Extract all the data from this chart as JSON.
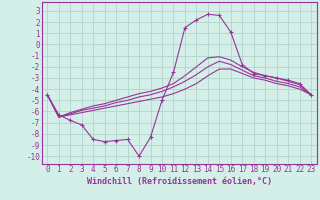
{
  "background_color": "#d4eee8",
  "grid_color": "#b0d4cc",
  "line_color": "#993399",
  "marker": "+",
  "xlabel": "Windchill (Refroidissement éolien,°C)",
  "xlabel_fontsize": 6,
  "ytick_fontsize": 5.5,
  "xtick_fontsize": 5.5,
  "xlim": [
    -0.5,
    23.5
  ],
  "ylim": [
    -10.7,
    3.8
  ],
  "yticks": [
    3,
    2,
    1,
    0,
    -1,
    -2,
    -3,
    -4,
    -5,
    -6,
    -7,
    -8,
    -9,
    -10
  ],
  "xticks": [
    0,
    1,
    2,
    3,
    4,
    5,
    6,
    7,
    8,
    9,
    10,
    11,
    12,
    13,
    14,
    15,
    16,
    17,
    18,
    19,
    20,
    21,
    22,
    23
  ],
  "series": [
    {
      "x": [
        0,
        1,
        2,
        3,
        4,
        5,
        6,
        7,
        8,
        9,
        10,
        11,
        12,
        13,
        14,
        15,
        16,
        17,
        18,
        19,
        20,
        21,
        22,
        23
      ],
      "y": [
        -4.5,
        -6.3,
        -6.8,
        -7.2,
        -8.5,
        -8.7,
        -8.6,
        -8.5,
        -10.0,
        -8.3,
        -5.0,
        -2.5,
        1.5,
        2.2,
        2.7,
        2.6,
        1.1,
        -1.8,
        -2.6,
        -2.8,
        -3.0,
        -3.2,
        -3.5,
        -4.5
      ],
      "has_markers": true
    },
    {
      "x": [
        0,
        1,
        2,
        3,
        4,
        5,
        6,
        7,
        8,
        9,
        10,
        11,
        12,
        13,
        14,
        15,
        16,
        17,
        18,
        19,
        20,
        21,
        22,
        23
      ],
      "y": [
        -4.5,
        -6.5,
        -6.3,
        -6.1,
        -5.9,
        -5.7,
        -5.5,
        -5.3,
        -5.1,
        -4.9,
        -4.7,
        -4.4,
        -4.0,
        -3.5,
        -2.8,
        -2.2,
        -2.2,
        -2.6,
        -3.0,
        -3.2,
        -3.5,
        -3.7,
        -4.0,
        -4.5
      ],
      "has_markers": false
    },
    {
      "x": [
        0,
        1,
        2,
        3,
        4,
        5,
        6,
        7,
        8,
        9,
        10,
        11,
        12,
        13,
        14,
        15,
        16,
        17,
        18,
        19,
        20,
        21,
        22,
        23
      ],
      "y": [
        -4.5,
        -6.5,
        -6.2,
        -5.9,
        -5.7,
        -5.5,
        -5.2,
        -5.0,
        -4.7,
        -4.5,
        -4.2,
        -3.8,
        -3.3,
        -2.7,
        -2.0,
        -1.5,
        -1.8,
        -2.3,
        -2.8,
        -3.0,
        -3.3,
        -3.5,
        -3.8,
        -4.5
      ],
      "has_markers": false
    },
    {
      "x": [
        0,
        1,
        2,
        3,
        4,
        5,
        6,
        7,
        8,
        9,
        10,
        11,
        12,
        13,
        14,
        15,
        16,
        17,
        18,
        19,
        20,
        21,
        22,
        23
      ],
      "y": [
        -4.5,
        -6.5,
        -6.1,
        -5.8,
        -5.5,
        -5.3,
        -5.0,
        -4.7,
        -4.4,
        -4.2,
        -3.9,
        -3.5,
        -2.8,
        -2.0,
        -1.2,
        -1.1,
        -1.4,
        -2.0,
        -2.5,
        -2.8,
        -3.0,
        -3.3,
        -3.6,
        -4.5
      ],
      "has_markers": false
    }
  ]
}
